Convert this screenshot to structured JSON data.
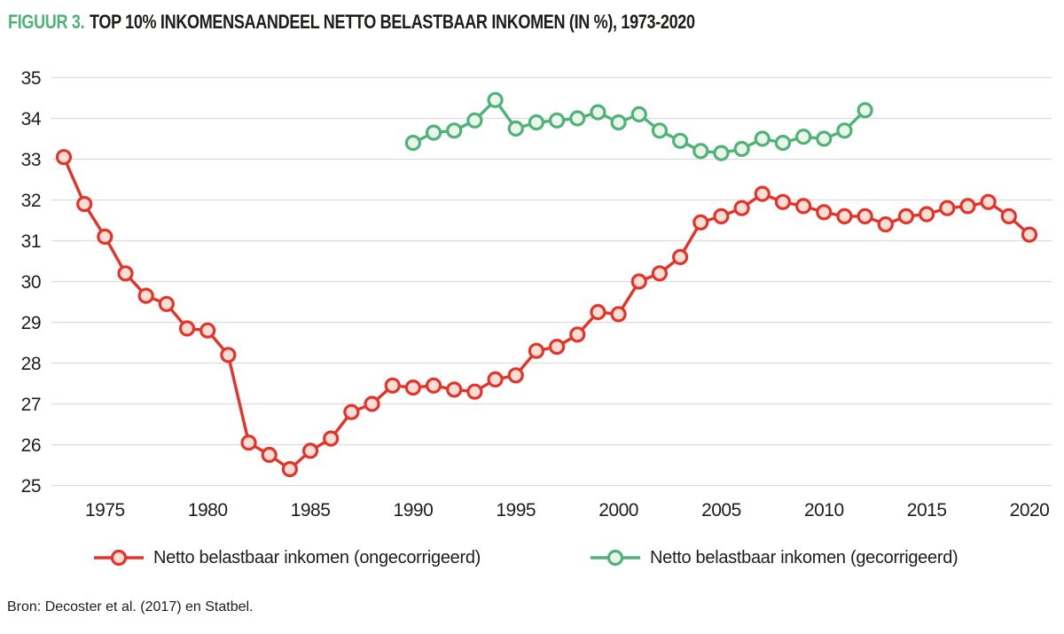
{
  "figure": {
    "label": "FIGUUR 3.",
    "title": "TOP 10% INKOMENSAANDEEL NETTO BELASTBAAR INKOMEN (IN %), 1973-2020"
  },
  "source": "Bron: Decoster et al. (2017) en Statbel.",
  "colors": {
    "accent_green": "#4FB377",
    "text": "#1D1D1B",
    "gridline": "#DCDCDC"
  },
  "chart_data": {
    "type": "line",
    "title": "TOP 10% INKOMENSAANDEEL NETTO BELASTBAAR INKOMEN (IN %), 1973-2020",
    "xlabel": "",
    "ylabel": "",
    "xlim": [
      1973,
      2020
    ],
    "ylim": [
      25,
      35
    ],
    "x_ticks": [
      1975,
      1980,
      1985,
      1990,
      1995,
      2000,
      2005,
      2010,
      2015,
      2020
    ],
    "y_ticks": [
      25,
      26,
      27,
      28,
      29,
      30,
      31,
      32,
      33,
      34,
      35
    ],
    "grid": "horizontal",
    "legend_position": "bottom",
    "marker": "circle",
    "series": [
      {
        "name": "Netto belastbaar inkomen (ongecorrigeerd)",
        "color": "#E6332A",
        "marker_fill": "#FADFD6",
        "x": [
          1973,
          1974,
          1975,
          1976,
          1977,
          1978,
          1979,
          1980,
          1981,
          1982,
          1983,
          1984,
          1985,
          1986,
          1987,
          1988,
          1989,
          1990,
          1991,
          1992,
          1993,
          1994,
          1995,
          1996,
          1997,
          1998,
          1999,
          2000,
          2001,
          2002,
          2003,
          2004,
          2005,
          2006,
          2007,
          2008,
          2009,
          2010,
          2011,
          2012,
          2013,
          2014,
          2015,
          2016,
          2017,
          2018,
          2019,
          2020
        ],
        "values": [
          33.05,
          31.9,
          31.1,
          30.2,
          29.65,
          29.45,
          28.85,
          28.8,
          28.2,
          26.05,
          25.75,
          25.4,
          25.85,
          26.15,
          26.8,
          27.0,
          27.45,
          27.4,
          27.45,
          27.35,
          27.3,
          27.6,
          27.7,
          28.3,
          28.4,
          28.7,
          29.25,
          29.2,
          30.0,
          30.2,
          30.6,
          31.45,
          31.6,
          31.8,
          32.15,
          31.95,
          31.85,
          31.7,
          31.6,
          31.6,
          31.4,
          31.6,
          31.65,
          31.8,
          31.85,
          31.95,
          31.6,
          31.15
        ]
      },
      {
        "name": "Netto belastbaar inkomen (gecorrigeerd)",
        "color": "#4FB377",
        "marker_fill": "#EAF5EC",
        "x": [
          1990,
          1991,
          1992,
          1993,
          1994,
          1995,
          1996,
          1997,
          1998,
          1999,
          2000,
          2001,
          2002,
          2003,
          2004,
          2005,
          2006,
          2007,
          2008,
          2009,
          2010,
          2011,
          2012
        ],
        "values": [
          33.4,
          33.65,
          33.7,
          33.95,
          34.45,
          33.75,
          33.9,
          33.95,
          34.0,
          34.15,
          33.9,
          34.1,
          33.7,
          33.45,
          33.2,
          33.15,
          33.25,
          33.5,
          33.4,
          33.55,
          33.5,
          33.7,
          34.2
        ]
      }
    ]
  }
}
